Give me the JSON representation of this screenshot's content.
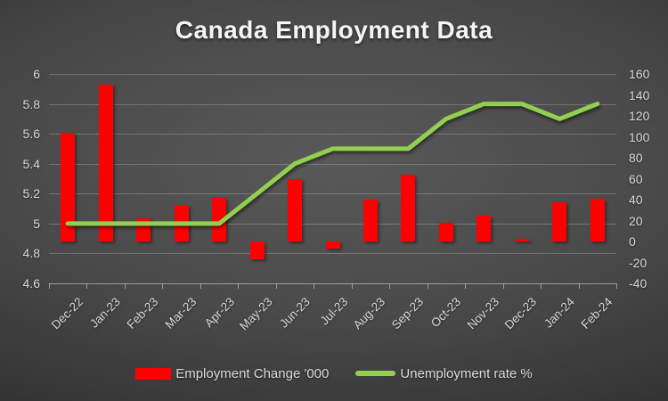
{
  "title": "Canada Employment Data",
  "legend": {
    "items": [
      {
        "label": "Employment Change '000",
        "swatch": "bar",
        "color": "#ff0000"
      },
      {
        "label": "Unemployment rate %",
        "swatch": "line",
        "color": "#92d050"
      }
    ]
  },
  "chart_data": {
    "type": "combo-bar-line",
    "title": "Canada Employment Data",
    "categories": [
      "Dec-22",
      "Jan-23",
      "Feb-23",
      "Mar-23",
      "Apr-23",
      "May-23",
      "Jun-23",
      "Jul-23",
      "Aug-23",
      "Sep-23",
      "Oct-23",
      "Nov-23",
      "Dec-23",
      "Jan-24",
      "Feb-24"
    ],
    "series": [
      {
        "name": "Employment Change '000",
        "type": "bar",
        "axis": "right",
        "color": "#ff0000",
        "values": [
          104,
          150,
          21.8,
          34.7,
          41.4,
          -17.3,
          59.9,
          -6.4,
          39.9,
          63.8,
          17.5,
          24.9,
          0.1,
          37.3,
          40.7
        ]
      },
      {
        "name": "Unemployment rate %",
        "type": "line",
        "axis": "left",
        "color": "#92d050",
        "values": [
          5.0,
          5.0,
          5.0,
          5.0,
          5.0,
          5.2,
          5.4,
          5.5,
          5.5,
          5.5,
          5.7,
          5.8,
          5.8,
          5.7,
          5.8
        ]
      }
    ],
    "left_axis": {
      "min": 4.6,
      "max": 6,
      "tick_values": [
        6,
        5.8,
        5.6,
        5.4,
        5.2,
        5,
        4.8,
        4.6
      ],
      "tick_labels": [
        "6",
        "5.8",
        "5.6",
        "5.4",
        "5.2",
        "5",
        "4.8",
        "4.6"
      ]
    },
    "right_axis": {
      "min": -40,
      "max": 160,
      "tick_values": [
        160,
        140,
        120,
        100,
        80,
        60,
        40,
        20,
        0,
        -20,
        -40
      ],
      "tick_labels": [
        "160",
        "140",
        "120",
        "100",
        "80",
        "60",
        "40",
        "20",
        "0",
        "-20",
        "-40"
      ]
    },
    "grid": true,
    "legend_position": "bottom"
  },
  "colors": {
    "background_center": "#595959",
    "background_edge": "#1e1e1e",
    "bar": "#ff0000",
    "line": "#92d050",
    "gridline": "rgba(255,255,255,0.22)",
    "axis_line": "rgba(255,255,255,0.45)",
    "text": "#d9d9d9",
    "title": "#f5f5f5"
  }
}
